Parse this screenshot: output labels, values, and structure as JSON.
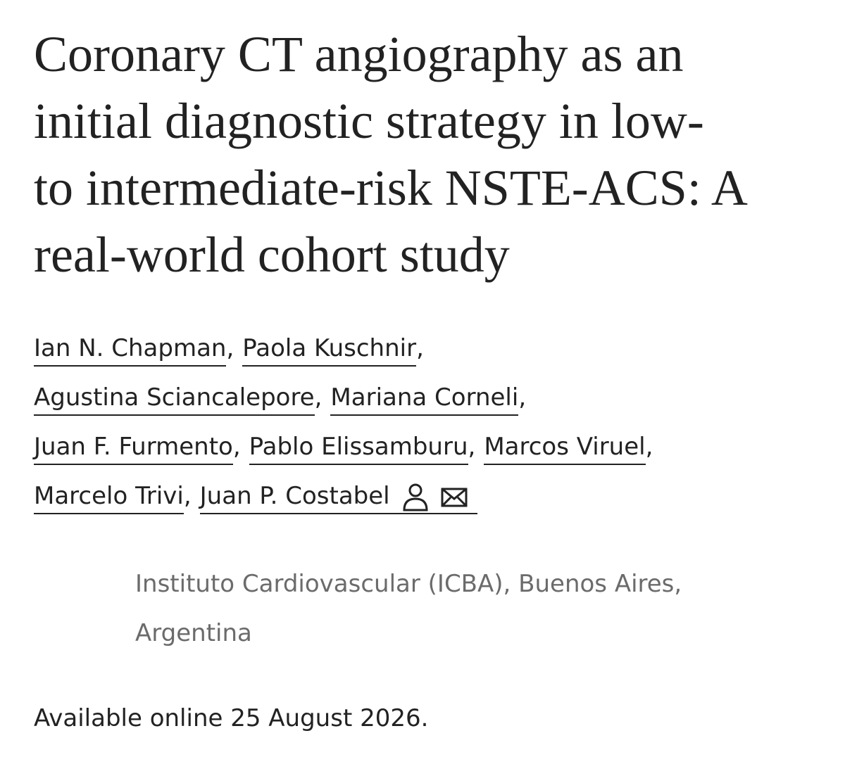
{
  "title_lines": [
    "Coronary CT angiography as an",
    "initial diagnostic strategy in low-",
    "to intermediate-risk NSTE-ACS: A",
    "real-world cohort study"
  ],
  "author_lines": [
    [
      {
        "name": "Ian N. Chapman",
        "sep": ","
      },
      {
        "name": "Paola Kuschnir",
        "sep": ","
      }
    ],
    [
      {
        "name": "Agustina Sciancalepore",
        "sep": ","
      },
      {
        "name": "Mariana Corneli",
        "sep": ","
      }
    ],
    [
      {
        "name": "Juan F. Furmento",
        "sep": ","
      },
      {
        "name": "Pablo Elissamburu",
        "sep": ","
      },
      {
        "name": "Marcos Viruel",
        "sep": ","
      }
    ],
    [
      {
        "name": "Marcelo Trivi",
        "sep": ","
      },
      {
        "name": "Juan P. Costabel"
      }
    ]
  ],
  "affiliation_lines": [
    "Instituto Cardiovascular (ICBA), Buenos Aires,",
    "Argentina"
  ],
  "availability": "Available online 25 August 2026."
}
